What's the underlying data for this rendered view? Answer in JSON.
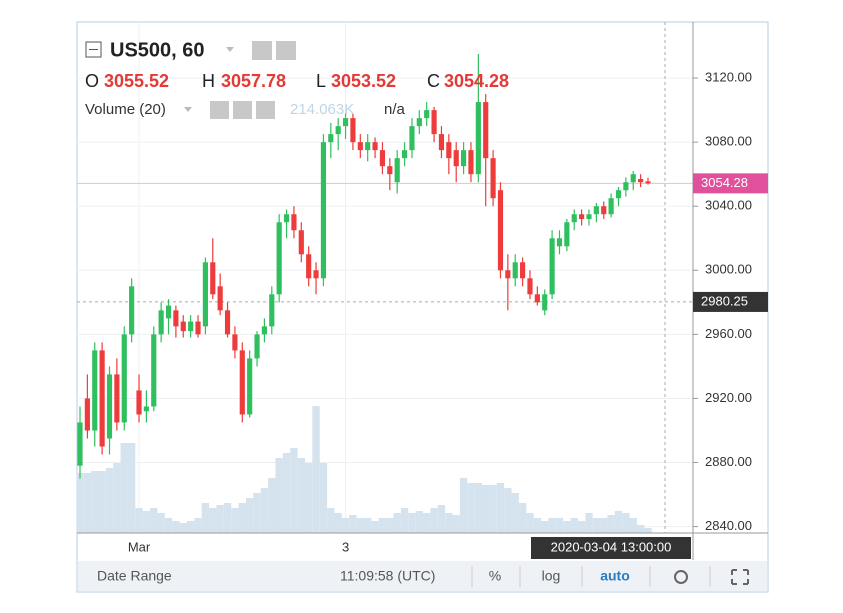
{
  "chart_data": {
    "type": "candlestick",
    "title": "US500, 60",
    "ohlc_letters": [
      "O",
      "H",
      "L",
      "C"
    ],
    "volume_title": "Volume (20)",
    "volume_value": "214.063K",
    "volume_extra": "n/a",
    "up_color": "#2fbf5f",
    "down_color": "#ee3b3b",
    "volume_color": "#d5e3ef",
    "categories": [
      null,
      null,
      null,
      null,
      null,
      null,
      null,
      null,
      "Mar",
      null,
      null,
      null,
      null,
      null,
      null,
      null,
      null,
      null,
      null,
      null,
      null,
      null,
      null,
      null,
      null,
      null,
      null,
      null,
      null,
      null,
      null,
      null,
      null,
      null,
      null,
      null,
      "3",
      null,
      null,
      null,
      null,
      null,
      null,
      null,
      null,
      null,
      null,
      null,
      null,
      null,
      null,
      null,
      null,
      null,
      null,
      null,
      null,
      null,
      null,
      null,
      null,
      null,
      null,
      null,
      null,
      null,
      null,
      null,
      null,
      null,
      null,
      null,
      null,
      null,
      null,
      null,
      null,
      null
    ],
    "candles": [
      [
        2878,
        2915,
        2870,
        2905
      ],
      [
        2920,
        2935,
        2895,
        2900
      ],
      [
        2900,
        2955,
        2890,
        2950
      ],
      [
        2950,
        2955,
        2885,
        2890
      ],
      [
        2895,
        2940,
        2885,
        2935
      ],
      [
        2935,
        2945,
        2900,
        2905
      ],
      [
        2905,
        2965,
        2900,
        2960
      ],
      [
        2960,
        2995,
        2955,
        2990
      ],
      [
        2925,
        2935,
        2905,
        2910
      ],
      [
        2912,
        2925,
        2905,
        2915
      ],
      [
        2915,
        2965,
        2912,
        2960
      ],
      [
        2960,
        2980,
        2955,
        2975
      ],
      [
        2970,
        2982,
        2960,
        2978
      ],
      [
        2975,
        2978,
        2958,
        2965
      ],
      [
        2968,
        2972,
        2958,
        2962
      ],
      [
        2962,
        2972,
        2958,
        2968
      ],
      [
        2968,
        2972,
        2958,
        2960
      ],
      [
        2965,
        3008,
        2960,
        3005
      ],
      [
        3005,
        3020,
        2982,
        2985
      ],
      [
        2990,
        2998,
        2972,
        2975
      ],
      [
        2975,
        2980,
        2958,
        2960
      ],
      [
        2960,
        2965,
        2945,
        2950
      ],
      [
        2950,
        2955,
        2905,
        2910
      ],
      [
        2910,
        2950,
        2908,
        2945
      ],
      [
        2945,
        2962,
        2940,
        2960
      ],
      [
        2960,
        2970,
        2955,
        2965
      ],
      [
        2965,
        2990,
        2960,
        2985
      ],
      [
        2985,
        3035,
        2980,
        3030
      ],
      [
        3030,
        3038,
        3020,
        3035
      ],
      [
        3035,
        3040,
        3020,
        3025
      ],
      [
        3025,
        3030,
        3005,
        3010
      ],
      [
        3010,
        3015,
        2990,
        2995
      ],
      [
        3000,
        3005,
        2985,
        2995
      ],
      [
        2995,
        3085,
        2990,
        3080
      ],
      [
        3080,
        3092,
        3070,
        3085
      ],
      [
        3085,
        3095,
        3075,
        3090
      ],
      [
        3090,
        3098,
        3082,
        3095
      ],
      [
        3095,
        3098,
        3075,
        3080
      ],
      [
        3080,
        3085,
        3070,
        3075
      ],
      [
        3075,
        3085,
        3068,
        3080
      ],
      [
        3080,
        3083,
        3070,
        3075
      ],
      [
        3075,
        3080,
        3060,
        3065
      ],
      [
        3065,
        3070,
        3050,
        3060
      ],
      [
        3055,
        3075,
        3048,
        3070
      ],
      [
        3070,
        3080,
        3065,
        3075
      ],
      [
        3075,
        3095,
        3070,
        3090
      ],
      [
        3090,
        3100,
        3085,
        3095
      ],
      [
        3095,
        3105,
        3090,
        3100
      ],
      [
        3100,
        3102,
        3080,
        3085
      ],
      [
        3085,
        3090,
        3070,
        3075
      ],
      [
        3080,
        3085,
        3060,
        3070
      ],
      [
        3075,
        3080,
        3055,
        3065
      ],
      [
        3065,
        3080,
        3060,
        3075
      ],
      [
        3075,
        3080,
        3055,
        3060
      ],
      [
        3060,
        3135,
        3055,
        3105
      ],
      [
        3105,
        3110,
        3040,
        3070
      ],
      [
        3070,
        3075,
        3040,
        3045
      ],
      [
        3050,
        3055,
        2995,
        3000
      ],
      [
        3000,
        3010,
        2975,
        2995
      ],
      [
        2995,
        3010,
        2990,
        3005
      ],
      [
        3005,
        3008,
        2990,
        2995
      ],
      [
        2995,
        3000,
        2982,
        2985
      ],
      [
        2985,
        2990,
        2978,
        2980
      ],
      [
        2975,
        2988,
        2972,
        2985
      ],
      [
        2985,
        3025,
        2982,
        3020
      ],
      [
        3015,
        3025,
        3010,
        3020
      ],
      [
        3015,
        3032,
        3012,
        3030
      ],
      [
        3030,
        3038,
        3025,
        3035
      ],
      [
        3035,
        3038,
        3028,
        3032
      ],
      [
        3032,
        3038,
        3028,
        3035
      ],
      [
        3035,
        3042,
        3030,
        3040
      ],
      [
        3040,
        3043,
        3032,
        3035
      ],
      [
        3035,
        3048,
        3033,
        3045
      ],
      [
        3045,
        3052,
        3040,
        3050
      ],
      [
        3050,
        3058,
        3046,
        3055
      ],
      [
        3055,
        3062,
        3050,
        3060
      ],
      [
        3057,
        3060,
        3052,
        3055
      ],
      [
        3055.52,
        3057.78,
        3053.52,
        3054.28
      ]
    ],
    "volume": [
      180,
      180,
      186,
      186,
      195,
      210,
      270,
      270,
      75,
      66,
      75,
      60,
      45,
      36,
      30,
      36,
      45,
      90,
      75,
      84,
      90,
      75,
      90,
      105,
      120,
      135,
      165,
      225,
      240,
      255,
      225,
      210,
      381,
      210,
      75,
      60,
      45,
      54,
      45,
      45,
      36,
      45,
      45,
      60,
      75,
      60,
      66,
      60,
      75,
      84,
      60,
      54,
      165,
      150,
      150,
      144,
      144,
      150,
      135,
      120,
      90,
      60,
      45,
      36,
      45,
      45,
      36,
      45,
      36,
      60,
      45,
      45,
      54,
      66,
      60,
      45,
      24,
      15
    ],
    "ylim": [
      2836,
      3155
    ],
    "yticks": [
      {
        "value": 2840,
        "label": "2840.00"
      },
      {
        "value": 2880,
        "label": "2880.00"
      },
      {
        "value": 2920,
        "label": "2920.00"
      },
      {
        "value": 2960,
        "label": "2960.00"
      },
      {
        "value": 3000,
        "label": "3000.00"
      },
      {
        "value": 3040,
        "label": "3040.00"
      },
      {
        "value": 3080,
        "label": "3080.00"
      },
      {
        "value": 3120,
        "label": "3120.00"
      }
    ],
    "crosshair_price": {
      "value": 2980.25,
      "label": "2980.25"
    },
    "crosshair_time": "2020-03-04 13:00:00",
    "grid": true
  },
  "toolbar": {
    "date_range": "Date Range",
    "clock": "11:09:58 (UTC)",
    "percent": "%",
    "log": "log",
    "auto": "auto"
  }
}
